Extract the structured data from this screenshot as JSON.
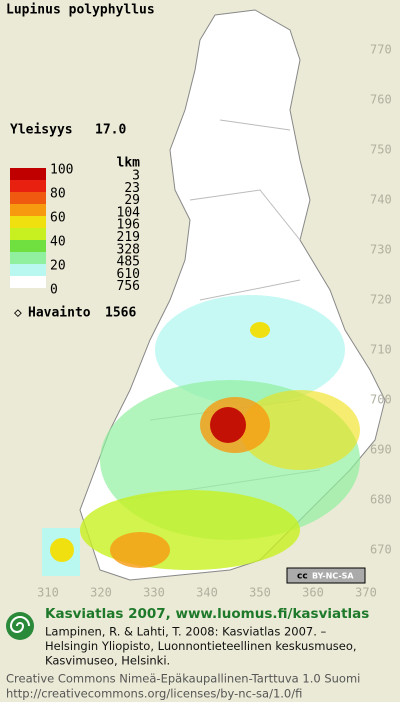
{
  "title": "Lupinus polyphyllus",
  "frequency": {
    "label": "Yleisyys",
    "value": "17.0"
  },
  "legend": {
    "levels": [
      100,
      80,
      60,
      40,
      20,
      0
    ],
    "count_header": "lkm",
    "counts": [
      3,
      23,
      29,
      104,
      196,
      219,
      328,
      485,
      610,
      756
    ],
    "colors": [
      "#c00000",
      "#e82010",
      "#f05a10",
      "#f89a10",
      "#f0e010",
      "#c8f020",
      "#70e040",
      "#90f0a0",
      "#b8f8f0",
      "#ffffff"
    ]
  },
  "observations": {
    "label": "Havainto",
    "value": "1566"
  },
  "y_labels": [
    770,
    760,
    750,
    740,
    730,
    720,
    710,
    700,
    690,
    680,
    670
  ],
  "x_labels": [
    310,
    320,
    330,
    340,
    350,
    360,
    370
  ],
  "license_badge": {
    "symbol": "cc",
    "text": "BY-NC-SA"
  },
  "footer": {
    "heading": "Kasviatlas 2007, www.luomus.fi/kasviatlas",
    "citation": [
      "Lampinen, R. & Lahti, T. 2008: Kasviatlas 2007. –",
      "Helsingin Yliopisto, Luonnontieteellinen keskusmuseo,",
      "Kasvimuseo, Helsinki."
    ],
    "license": [
      "Creative Commons Nimeä-Epäkaupallinen-Tarttuva 1.0 Suomi",
      "http://creativecommons.org/licenses/by-nc-sa/1.0/fi"
    ]
  }
}
